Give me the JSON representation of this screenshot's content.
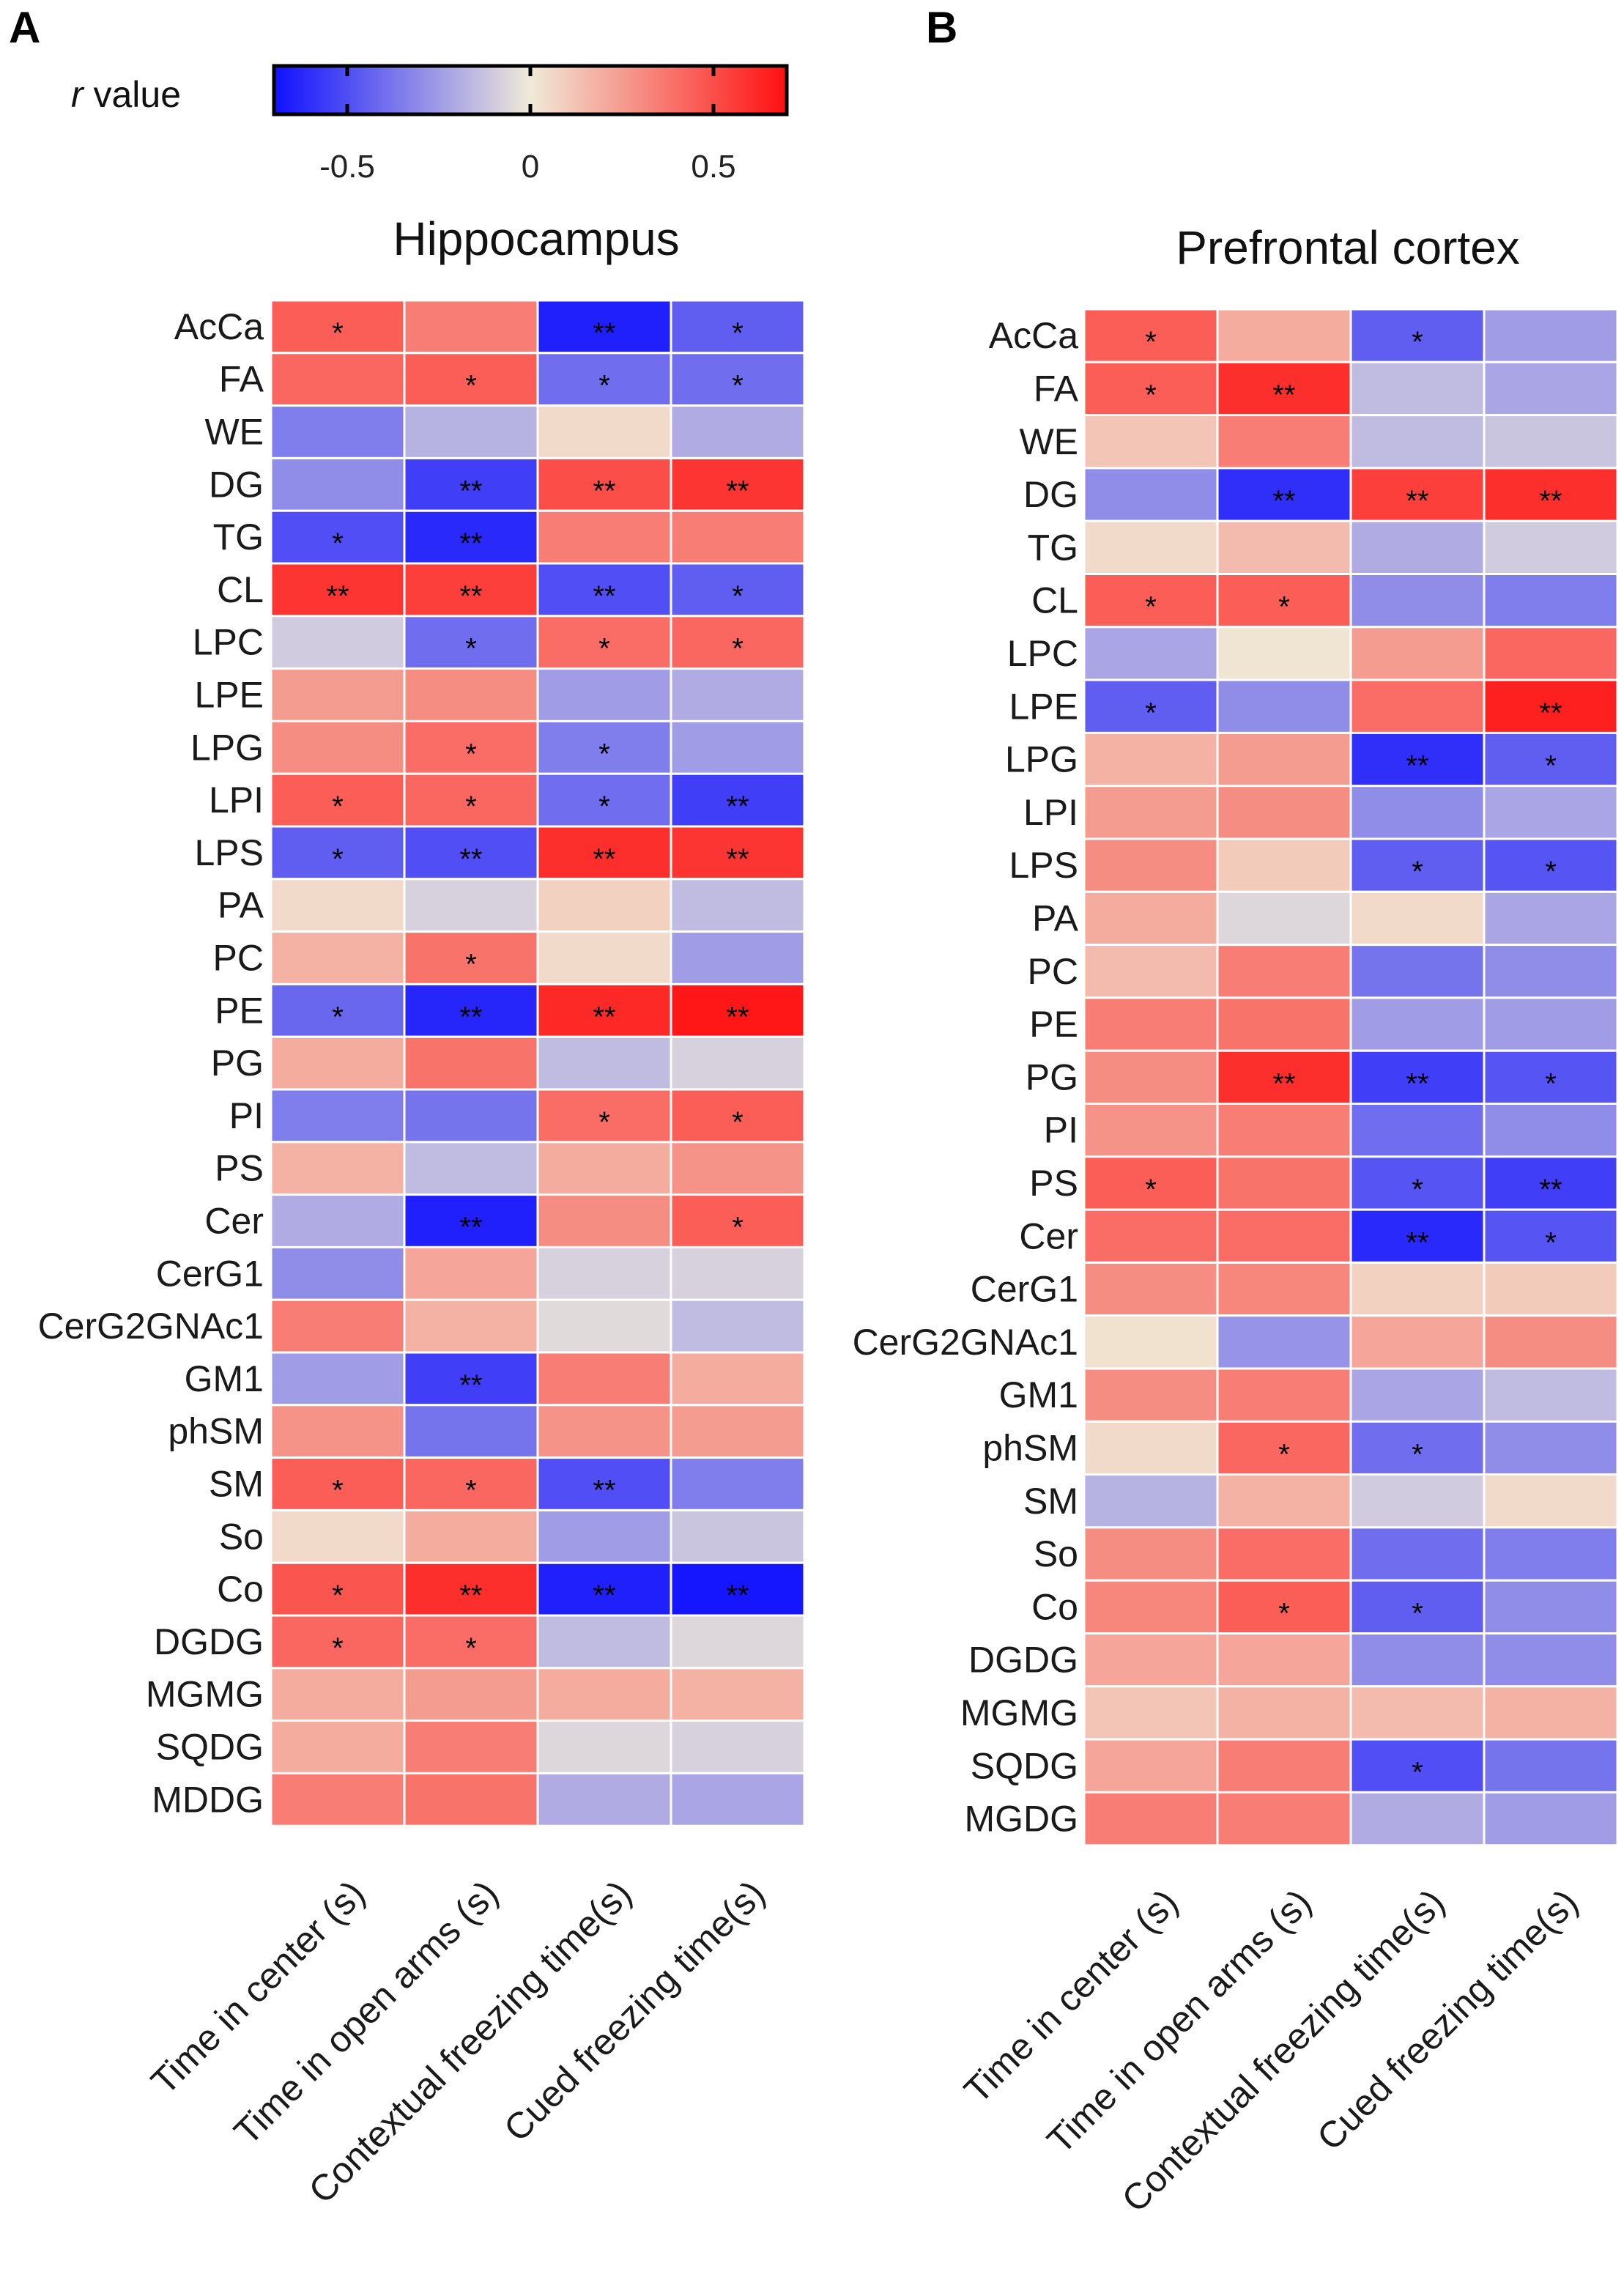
{
  "colorbar": {
    "label_italic": "r",
    "label_rest": " value",
    "ticks": [
      "-0.5",
      "0",
      "0.5"
    ],
    "tick_values": [
      -0.5,
      0,
      0.5
    ],
    "range": [
      -0.7,
      0.7
    ],
    "colors": {
      "neg": "#1010ff",
      "mid": "#f0ead8",
      "pos": "#ff1010"
    }
  },
  "chart_data": [
    {
      "type": "heatmap",
      "panel": "A",
      "title": "Hippocampus",
      "columns": [
        "Time in center (s)",
        "Time in open arms (s)",
        "Contextual freezing time(s)",
        "Cued freezing time(s)"
      ],
      "rows": [
        "AcCa",
        "FA",
        "WE",
        "DG",
        "TG",
        "CL",
        "LPC",
        "LPE",
        "LPG",
        "LPI",
        "LPS",
        "PA",
        "PC",
        "PE",
        "PG",
        "PI",
        "PS",
        "Cer",
        "CerG1",
        "CerG2GNAc1",
        "GM1",
        "phSM",
        "SM",
        "So",
        "Co",
        "DGDG",
        "MGMG",
        "SQDG",
        "MDDG"
      ],
      "values": [
        [
          0.45,
          0.35,
          -0.65,
          -0.45
        ],
        [
          0.42,
          0.45,
          -0.4,
          -0.4
        ],
        [
          -0.35,
          -0.18,
          0.05,
          -0.2
        ],
        [
          -0.3,
          -0.55,
          0.5,
          0.58
        ],
        [
          -0.5,
          -0.62,
          0.35,
          0.35
        ],
        [
          0.58,
          0.55,
          -0.5,
          -0.45
        ],
        [
          -0.1,
          -0.4,
          0.4,
          0.42
        ],
        [
          0.25,
          0.3,
          -0.25,
          -0.2
        ],
        [
          0.3,
          0.4,
          -0.35,
          -0.25
        ],
        [
          0.45,
          0.42,
          -0.4,
          -0.55
        ],
        [
          -0.45,
          -0.5,
          0.6,
          0.58
        ],
        [
          0.05,
          -0.08,
          0.08,
          -0.15
        ],
        [
          0.18,
          0.38,
          0.05,
          -0.25
        ],
        [
          -0.42,
          -0.63,
          0.62,
          0.68
        ],
        [
          0.2,
          0.38,
          -0.15,
          -0.08
        ],
        [
          -0.35,
          -0.38,
          0.4,
          0.45
        ],
        [
          0.18,
          -0.15,
          0.2,
          0.28
        ],
        [
          -0.2,
          -0.65,
          0.3,
          0.45
        ],
        [
          -0.3,
          0.22,
          -0.08,
          -0.08
        ],
        [
          0.35,
          0.18,
          -0.05,
          -0.15
        ],
        [
          -0.25,
          -0.55,
          0.35,
          0.2
        ],
        [
          0.28,
          -0.38,
          0.28,
          0.25
        ],
        [
          0.45,
          0.42,
          -0.5,
          -0.35
        ],
        [
          0.05,
          0.2,
          -0.25,
          -0.12
        ],
        [
          0.48,
          0.6,
          -0.65,
          -0.68
        ],
        [
          0.42,
          0.4,
          -0.15,
          -0.06
        ],
        [
          0.2,
          0.25,
          0.2,
          0.18
        ],
        [
          0.2,
          0.35,
          -0.06,
          -0.08
        ],
        [
          0.35,
          0.38,
          -0.2,
          -0.22
        ]
      ],
      "stars": [
        [
          "*",
          "",
          "**",
          "*"
        ],
        [
          "",
          "*",
          "*",
          "*"
        ],
        [
          "",
          "",
          "",
          ""
        ],
        [
          "",
          "**",
          "**",
          "**"
        ],
        [
          "*",
          "**",
          "",
          ""
        ],
        [
          "**",
          "**",
          "**",
          "*"
        ],
        [
          "",
          "*",
          "*",
          "*"
        ],
        [
          "",
          "",
          "",
          ""
        ],
        [
          "",
          "*",
          "*",
          ""
        ],
        [
          "*",
          "*",
          "*",
          "**"
        ],
        [
          "*",
          "**",
          "**",
          "**"
        ],
        [
          "",
          "",
          "",
          ""
        ],
        [
          "",
          "*",
          "",
          ""
        ],
        [
          "*",
          "**",
          "**",
          "**"
        ],
        [
          "",
          "",
          "",
          ""
        ],
        [
          "",
          "",
          "*",
          "*"
        ],
        [
          "",
          "",
          "",
          ""
        ],
        [
          "",
          "**",
          "",
          "*"
        ],
        [
          "",
          "",
          "",
          ""
        ],
        [
          "",
          "",
          "",
          ""
        ],
        [
          "",
          "**",
          "",
          ""
        ],
        [
          "",
          "",
          "",
          ""
        ],
        [
          "*",
          "*",
          "**",
          ""
        ],
        [
          "",
          "",
          "",
          ""
        ],
        [
          "*",
          "**",
          "**",
          "**"
        ],
        [
          "*",
          "*",
          "",
          ""
        ],
        [
          "",
          "",
          "",
          ""
        ],
        [
          "",
          "",
          "",
          ""
        ],
        [
          "",
          "",
          "",
          ""
        ]
      ]
    },
    {
      "type": "heatmap",
      "panel": "B",
      "title": "Prefrontal cortex",
      "columns": [
        "Time in center (s)",
        "Time in open arms (s)",
        "Contextual freezing time(s)",
        "Cued freezing time(s)"
      ],
      "rows": [
        "AcCa",
        "FA",
        "WE",
        "DG",
        "TG",
        "CL",
        "LPC",
        "LPE",
        "LPG",
        "LPI",
        "LPS",
        "PA",
        "PC",
        "PE",
        "PG",
        "PI",
        "PS",
        "Cer",
        "CerG1",
        "CerG2GNAc1",
        "GM1",
        "phSM",
        "SM",
        "So",
        "Co",
        "DGDG",
        "MGMG",
        "SQDG",
        "MGDG"
      ],
      "values": [
        [
          0.45,
          0.2,
          -0.45,
          -0.25
        ],
        [
          0.45,
          0.6,
          -0.15,
          -0.22
        ],
        [
          0.12,
          0.35,
          -0.15,
          -0.12
        ],
        [
          -0.3,
          -0.6,
          0.55,
          0.6
        ],
        [
          0.05,
          0.15,
          -0.2,
          -0.1
        ],
        [
          0.45,
          0.45,
          -0.3,
          -0.35
        ],
        [
          -0.22,
          0.02,
          0.25,
          0.42
        ],
        [
          -0.45,
          -0.3,
          0.4,
          0.65
        ],
        [
          0.18,
          0.25,
          -0.6,
          -0.45
        ],
        [
          0.25,
          0.3,
          -0.3,
          -0.22
        ],
        [
          0.3,
          0.1,
          -0.45,
          -0.48
        ],
        [
          0.2,
          -0.06,
          0.05,
          -0.22
        ],
        [
          0.15,
          0.35,
          -0.38,
          -0.3
        ],
        [
          0.35,
          0.38,
          -0.25,
          -0.25
        ],
        [
          0.3,
          0.6,
          -0.55,
          -0.48
        ],
        [
          0.28,
          0.35,
          -0.4,
          -0.3
        ],
        [
          0.45,
          0.38,
          -0.48,
          -0.55
        ],
        [
          0.4,
          0.4,
          -0.62,
          -0.48
        ],
        [
          0.3,
          0.32,
          0.08,
          0.1
        ],
        [
          0.03,
          -0.28,
          0.22,
          0.3
        ],
        [
          0.3,
          0.35,
          -0.22,
          -0.15
        ],
        [
          0.05,
          0.42,
          -0.4,
          -0.3
        ],
        [
          -0.18,
          0.18,
          -0.1,
          0.05
        ],
        [
          0.3,
          0.4,
          -0.4,
          -0.35
        ],
        [
          0.32,
          0.45,
          -0.45,
          -0.3
        ],
        [
          0.22,
          0.22,
          -0.3,
          -0.3
        ],
        [
          0.12,
          0.18,
          0.15,
          0.18
        ],
        [
          0.22,
          0.35,
          -0.5,
          -0.38
        ],
        [
          0.35,
          0.35,
          -0.2,
          -0.25
        ]
      ],
      "stars": [
        [
          "*",
          "",
          "*",
          ""
        ],
        [
          "*",
          "**",
          "",
          ""
        ],
        [
          "",
          "",
          "",
          ""
        ],
        [
          "",
          "**",
          "**",
          "**"
        ],
        [
          "",
          "",
          "",
          ""
        ],
        [
          "*",
          "*",
          "",
          ""
        ],
        [
          "",
          "",
          "",
          ""
        ],
        [
          "*",
          "",
          "",
          "**"
        ],
        [
          "",
          "",
          "**",
          "*"
        ],
        [
          "",
          "",
          "",
          ""
        ],
        [
          "",
          "",
          "*",
          "*"
        ],
        [
          "",
          "",
          "",
          ""
        ],
        [
          "",
          "",
          "",
          ""
        ],
        [
          "",
          "",
          "",
          ""
        ],
        [
          "",
          "**",
          "**",
          "*"
        ],
        [
          "",
          "",
          "",
          ""
        ],
        [
          "*",
          "",
          "*",
          "**"
        ],
        [
          "",
          "",
          "**",
          "*"
        ],
        [
          "",
          "",
          "",
          ""
        ],
        [
          "",
          "",
          "",
          ""
        ],
        [
          "",
          "",
          "",
          ""
        ],
        [
          "",
          "*",
          "*",
          ""
        ],
        [
          "",
          "",
          "",
          ""
        ],
        [
          "",
          "",
          "",
          ""
        ],
        [
          "",
          "*",
          "*",
          ""
        ],
        [
          "",
          "",
          "",
          ""
        ],
        [
          "",
          "",
          "",
          ""
        ],
        [
          "",
          "",
          "*",
          ""
        ],
        [
          "",
          "",
          "",
          ""
        ]
      ]
    }
  ]
}
